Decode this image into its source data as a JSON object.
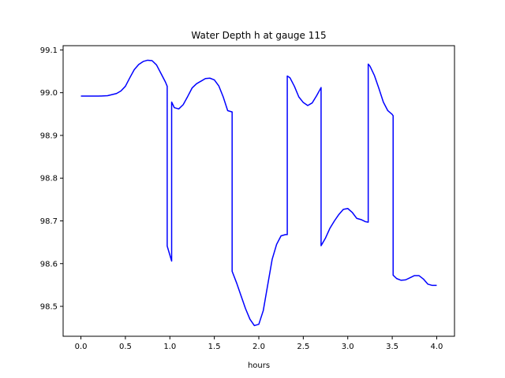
{
  "chart_data": {
    "type": "line",
    "title": "Water Depth h at gauge 115",
    "xlabel": "hours",
    "ylabel": "",
    "xlim": [
      -0.2,
      4.2
    ],
    "ylim": [
      98.43,
      99.11
    ],
    "xticks": [
      0.0,
      0.5,
      1.0,
      1.5,
      2.0,
      2.5,
      3.0,
      3.5,
      4.0
    ],
    "xtick_labels": [
      "0.0",
      "0.5",
      "1.0",
      "1.5",
      "2.0",
      "2.5",
      "3.0",
      "3.5",
      "4.0"
    ],
    "yticks": [
      98.5,
      98.6,
      98.7,
      98.8,
      98.9,
      99.0,
      99.1
    ],
    "ytick_labels": [
      "98.5",
      "98.6",
      "98.7",
      "98.8",
      "98.9",
      "99.0",
      "99.1"
    ],
    "grid": false,
    "series": [
      {
        "color": "#0000ff",
        "x": [
          0.0,
          0.1,
          0.2,
          0.3,
          0.4,
          0.45,
          0.5,
          0.55,
          0.6,
          0.65,
          0.7,
          0.75,
          0.8,
          0.85,
          0.9,
          0.95,
          0.97,
          0.97,
          1.02,
          1.02,
          1.05,
          1.1,
          1.15,
          1.2,
          1.25,
          1.3,
          1.35,
          1.4,
          1.45,
          1.5,
          1.55,
          1.6,
          1.65,
          1.7,
          1.7,
          1.75,
          1.8,
          1.85,
          1.9,
          1.95,
          2.0,
          2.05,
          2.1,
          2.15,
          2.2,
          2.25,
          2.3,
          2.32,
          2.32,
          2.35,
          2.4,
          2.45,
          2.5,
          2.55,
          2.6,
          2.65,
          2.7,
          2.7,
          2.75,
          2.8,
          2.85,
          2.9,
          2.95,
          3.0,
          3.05,
          3.1,
          3.15,
          3.2,
          3.23,
          3.23,
          3.25,
          3.3,
          3.35,
          3.4,
          3.45,
          3.5,
          3.51,
          3.51,
          3.55,
          3.6,
          3.65,
          3.7,
          3.75,
          3.8,
          3.85,
          3.9,
          3.95,
          4.0
        ],
        "y": [
          98.992,
          98.992,
          98.992,
          98.993,
          98.998,
          99.004,
          99.015,
          99.035,
          99.054,
          99.066,
          99.073,
          99.076,
          99.075,
          99.065,
          99.045,
          99.025,
          99.015,
          98.641,
          98.606,
          98.978,
          98.965,
          98.962,
          98.972,
          98.991,
          99.011,
          99.021,
          99.027,
          99.033,
          99.034,
          99.03,
          99.016,
          98.99,
          98.958,
          98.955,
          98.582,
          98.555,
          98.525,
          98.495,
          98.47,
          98.455,
          98.458,
          98.49,
          98.55,
          98.61,
          98.645,
          98.665,
          98.668,
          98.668,
          99.039,
          99.035,
          99.015,
          98.99,
          98.977,
          98.97,
          98.976,
          98.993,
          99.012,
          98.642,
          98.66,
          98.683,
          98.7,
          98.715,
          98.727,
          98.729,
          98.72,
          98.706,
          98.703,
          98.698,
          98.697,
          99.067,
          99.062,
          99.04,
          99.01,
          98.978,
          98.958,
          98.949,
          98.946,
          98.573,
          98.565,
          98.561,
          98.562,
          98.567,
          98.572,
          98.572,
          98.564,
          98.552,
          98.549,
          98.549
        ]
      }
    ]
  }
}
